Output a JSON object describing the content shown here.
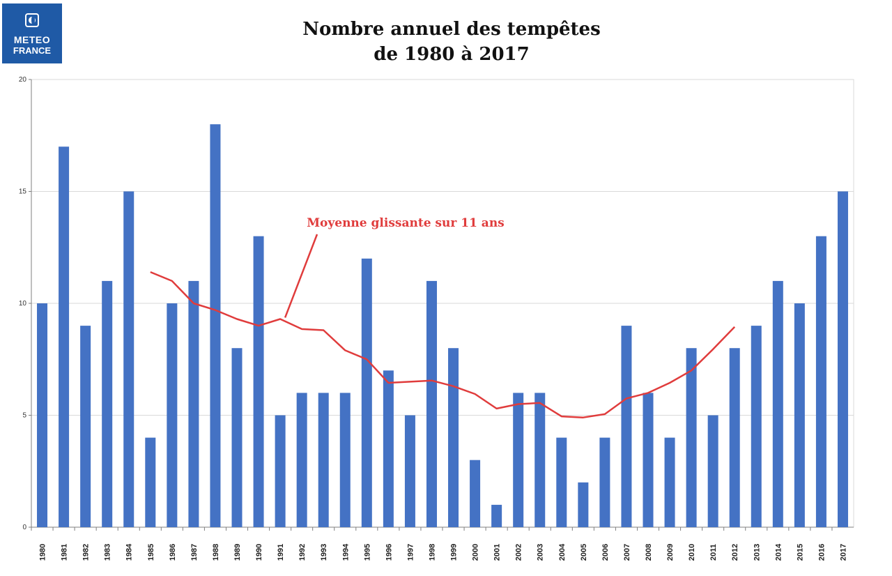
{
  "logo": {
    "line1": "METEO",
    "line2": "FRANCE",
    "color": "#1f5aa6"
  },
  "chart_data": {
    "type": "bar",
    "title_line1": "Nombre annuel des tempêtes",
    "title_line2": "de 1980 à 2017",
    "xlabel": "",
    "ylabel": "",
    "ylim": [
      0,
      20
    ],
    "yticks": [
      0,
      5,
      10,
      15,
      20
    ],
    "grid": true,
    "categories": [
      "1980",
      "1981",
      "1982",
      "1983",
      "1984",
      "1985",
      "1986",
      "1987",
      "1988",
      "1989",
      "1990",
      "1991",
      "1992",
      "1993",
      "1994",
      "1995",
      "1996",
      "1997",
      "1998",
      "1999",
      "2000",
      "2001",
      "2002",
      "2003",
      "2004",
      "2005",
      "2006",
      "2007",
      "2008",
      "2009",
      "2010",
      "2011",
      "2012",
      "2013",
      "2014",
      "2015",
      "2016",
      "2017"
    ],
    "series": [
      {
        "color": "#4472c4",
        "values": [
          10,
          17,
          9,
          11,
          15,
          4,
          10,
          11,
          18,
          8,
          13,
          5,
          6,
          6,
          6,
          12,
          7,
          5,
          11,
          8,
          3,
          1,
          6,
          6,
          4,
          2,
          4,
          9,
          6,
          4,
          8,
          5,
          8,
          9,
          11,
          10,
          13,
          15
        ]
      }
    ],
    "moving_average": {
      "label": "Moyenne glissante sur 11 ans",
      "color": "#e03c3c",
      "years": [
        "1985",
        "1986",
        "1987",
        "1988",
        "1989",
        "1990",
        "1991",
        "1992",
        "1993",
        "1994",
        "1995",
        "1996",
        "1997",
        "1998",
        "1999",
        "2000",
        "2001",
        "2002",
        "2003",
        "2004",
        "2005",
        "2006",
        "2007",
        "2008",
        "2009",
        "2010",
        "2011",
        "2012"
      ],
      "values": [
        11.4,
        11.0,
        10.0,
        9.7,
        9.3,
        9.0,
        9.3,
        8.85,
        8.8,
        7.9,
        7.5,
        6.45,
        6.5,
        6.55,
        6.3,
        5.95,
        5.3,
        5.5,
        5.55,
        4.95,
        4.9,
        5.05,
        5.75,
        6.0,
        6.45,
        7.0,
        7.95,
        8.95
      ]
    }
  }
}
